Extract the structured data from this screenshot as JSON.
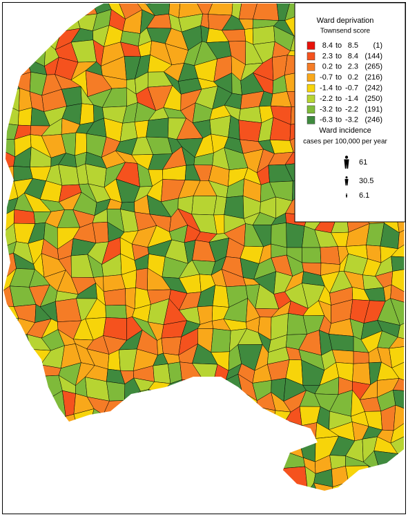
{
  "legend": {
    "deprivation": {
      "title": "Ward deprivation",
      "subtitle": "Townsend score",
      "separator": "to",
      "classes": [
        {
          "from": 8.4,
          "to": 8.5,
          "count": "(1)",
          "color": "#e8120a"
        },
        {
          "from": 2.3,
          "to": 8.4,
          "count": "(144)",
          "color": "#f5521e"
        },
        {
          "from": 0.2,
          "to": 2.3,
          "count": "(265)",
          "color": "#f57c26"
        },
        {
          "from": -0.7,
          "to": 0.2,
          "count": "(216)",
          "color": "#f9a81a"
        },
        {
          "from": -1.4,
          "to": -0.7,
          "count": "(242)",
          "color": "#f7d40a"
        },
        {
          "from": -2.2,
          "to": -1.4,
          "count": "(250)",
          "color": "#b7d432"
        },
        {
          "from": -3.2,
          "to": -2.2,
          "count": "(191)",
          "color": "#7fba3a"
        },
        {
          "from": -6.3,
          "to": -3.2,
          "count": "(246)",
          "color": "#3f8a3e"
        }
      ]
    },
    "incidence": {
      "title": "Ward incidence",
      "subtitle": "cases per 100,000 per year",
      "items": [
        61,
        30.5,
        6.1
      ]
    }
  }
}
